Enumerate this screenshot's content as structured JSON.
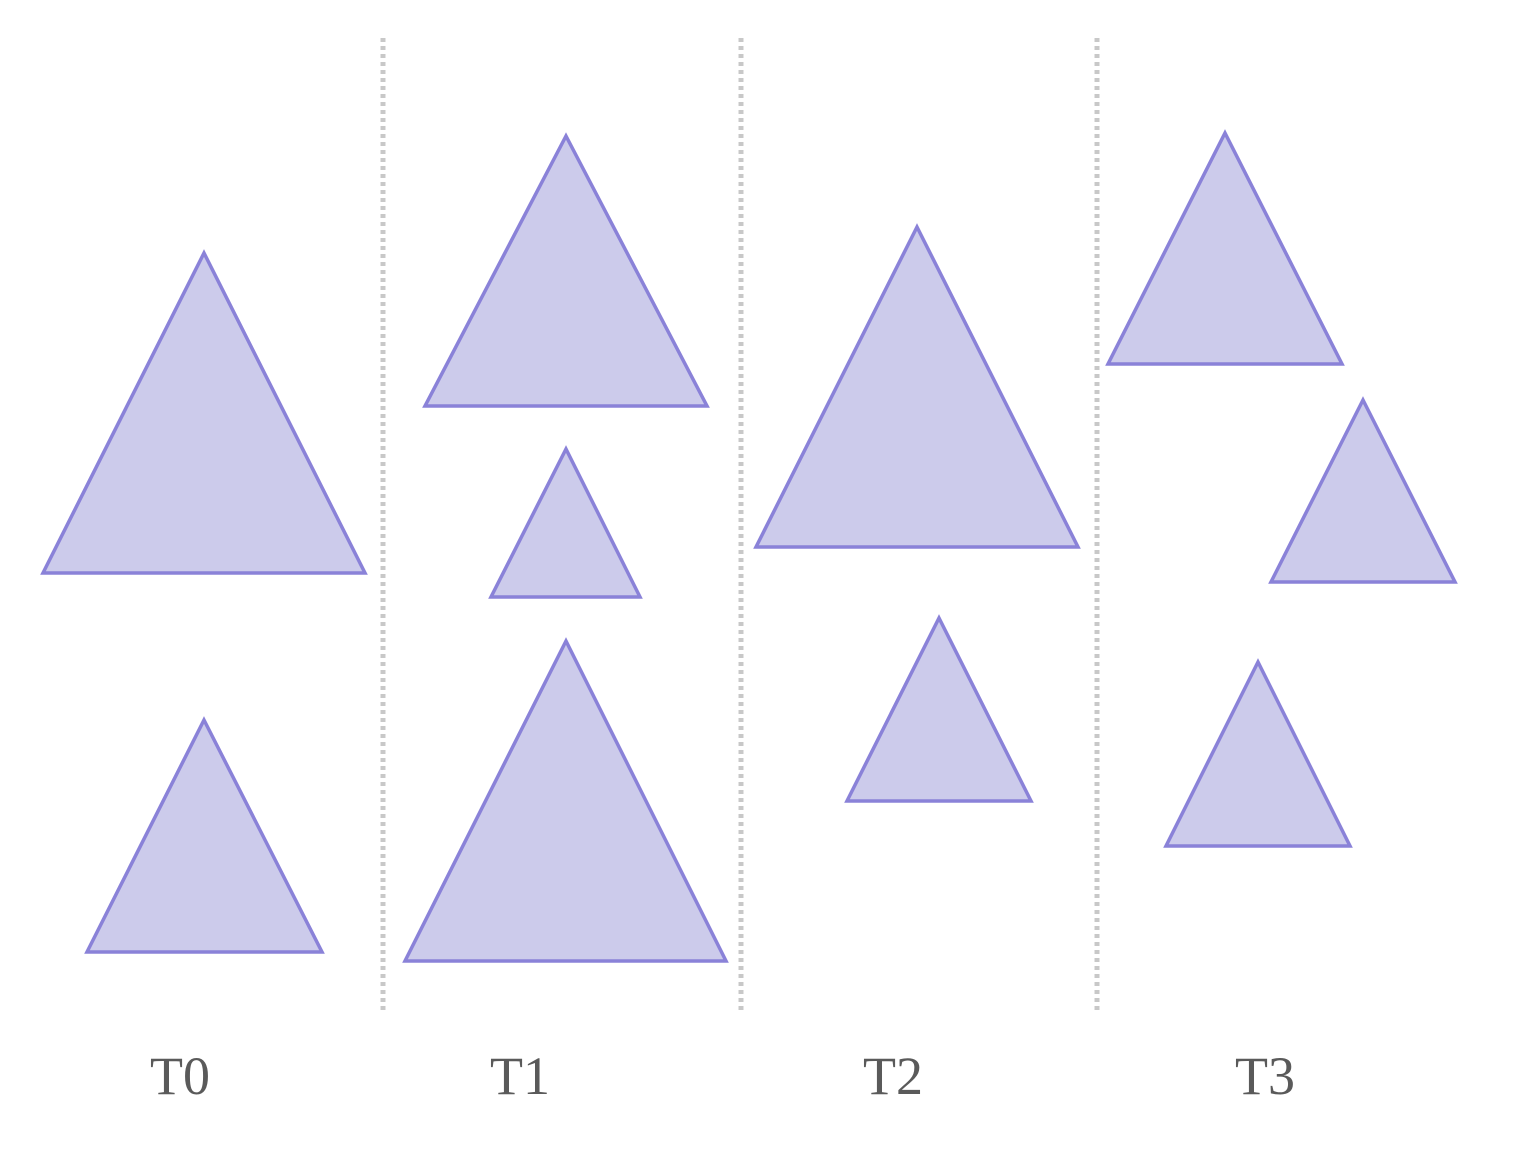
{
  "colors": {
    "background": "#ffffff",
    "triangle_fill": "#cccbeb",
    "triangle_stroke": "#8a82d8",
    "divider": "#c8c8c8",
    "label": "#5a5a5a"
  },
  "columns": [
    {
      "label": "T0",
      "triangle_count": 2
    },
    {
      "label": "T1",
      "triangle_count": 3
    },
    {
      "label": "T2",
      "triangle_count": 2
    },
    {
      "label": "T3",
      "triangle_count": 3
    }
  ]
}
